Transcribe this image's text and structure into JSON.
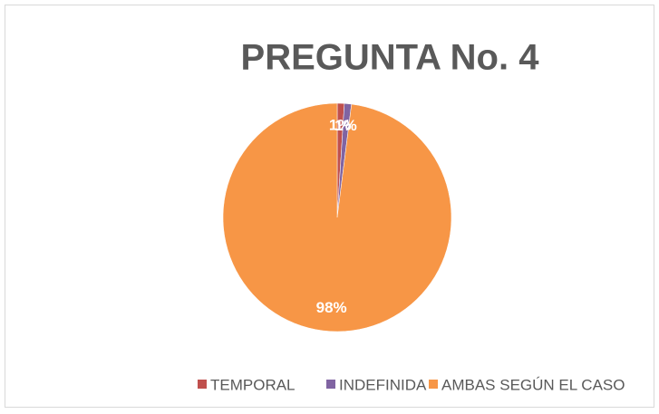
{
  "chart_data": {
    "type": "pie",
    "title": "PREGUNTA No. 4",
    "categories": [
      "TEMPORAL",
      "INDEFINIDA",
      "AMBAS SEGÚN EL CASO"
    ],
    "values": [
      1,
      1,
      98
    ],
    "value_labels": [
      "1%",
      "1%",
      "98%"
    ],
    "colors": [
      "#c0504d",
      "#8064a2",
      "#f79646"
    ],
    "legend": "bottom"
  }
}
